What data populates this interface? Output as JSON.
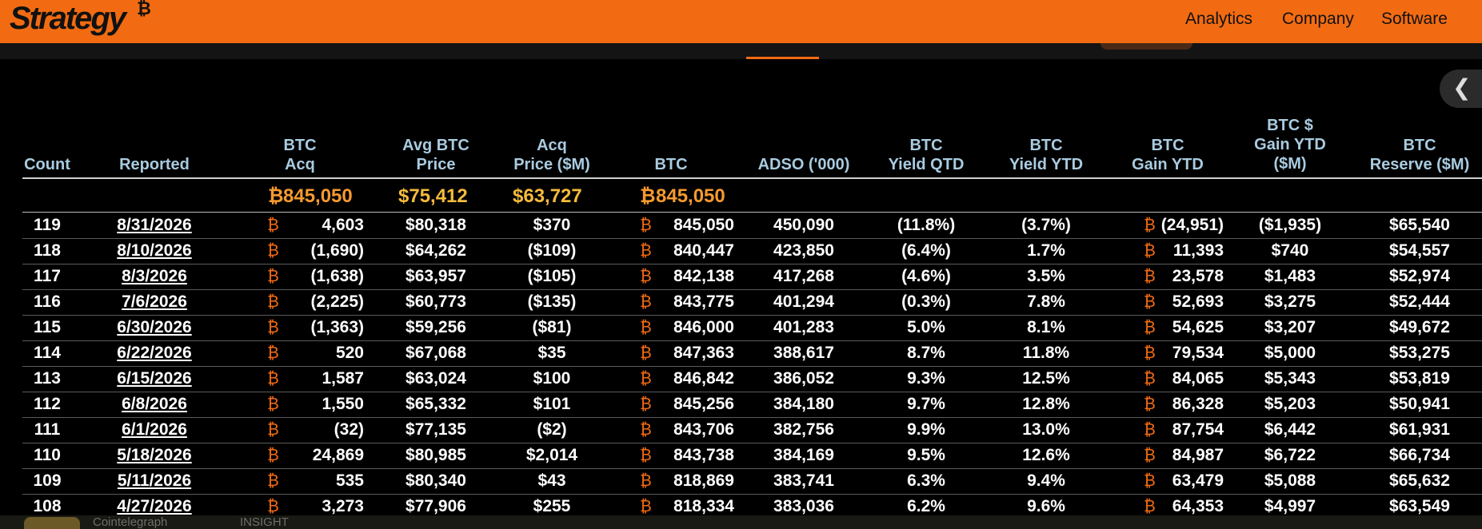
{
  "brand": {
    "logo_text": "Strategy",
    "logo_mark": "₿"
  },
  "nav": {
    "analytics": "Analytics",
    "company": "Company",
    "software": "Software"
  },
  "collapse_icon": "chevron-left-icon",
  "colors": {
    "accent": "#f26b12",
    "header_text": "#a9cbe0",
    "total_text": "#f5bb3c",
    "background": "#000000"
  },
  "table": {
    "headers": {
      "count": [
        "Count"
      ],
      "reported": [
        "Reported"
      ],
      "btc_acq": [
        "BTC",
        "Acq"
      ],
      "avg_btc_price": [
        "Avg BTC",
        "Price"
      ],
      "acq_price": [
        "Acq",
        "Price ($M)"
      ],
      "btc": [
        "BTC"
      ],
      "adso": [
        "ADSO ('000)"
      ],
      "btc_yield_qtd": [
        "BTC",
        "Yield QTD"
      ],
      "btc_yield_ytd": [
        "BTC",
        "Yield YTD"
      ],
      "btc_gain_ytd": [
        "BTC",
        "Gain YTD"
      ],
      "btc_usd_gain_ytd": [
        "BTC $",
        "Gain YTD",
        "($M)"
      ],
      "btc_reserve": [
        "BTC",
        "Reserve ($M)"
      ]
    },
    "btc_symbol": "₿",
    "totals": {
      "btc_acq": "845,050",
      "avg_btc_price": "$75,412",
      "acq_price": "$63,727",
      "btc": "845,050"
    },
    "rows": [
      {
        "count": "119",
        "reported": "8/31/2026",
        "btc_acq": "4,603",
        "avg_btc_price": "$80,318",
        "acq_price": "$370",
        "btc": "845,050",
        "adso": "450,090",
        "qtd": "(11.8%)",
        "ytd": "(3.7%)",
        "gain_ytd": "(24,951)",
        "gain_usd": "($1,935)",
        "reserve": "$65,540"
      },
      {
        "count": "118",
        "reported": "8/10/2026",
        "btc_acq": "(1,690)",
        "avg_btc_price": "$64,262",
        "acq_price": "($109)",
        "btc": "840,447",
        "adso": "423,850",
        "qtd": "(6.4%)",
        "ytd": "1.7%",
        "gain_ytd": "11,393",
        "gain_usd": "$740",
        "reserve": "$54,557"
      },
      {
        "count": "117",
        "reported": "8/3/2026",
        "btc_acq": "(1,638)",
        "avg_btc_price": "$63,957",
        "acq_price": "($105)",
        "btc": "842,138",
        "adso": "417,268",
        "qtd": "(4.6%)",
        "ytd": "3.5%",
        "gain_ytd": "23,578",
        "gain_usd": "$1,483",
        "reserve": "$52,974"
      },
      {
        "count": "116",
        "reported": "7/6/2026",
        "btc_acq": "(2,225)",
        "avg_btc_price": "$60,773",
        "acq_price": "($135)",
        "btc": "843,775",
        "adso": "401,294",
        "qtd": "(0.3%)",
        "ytd": "7.8%",
        "gain_ytd": "52,693",
        "gain_usd": "$3,275",
        "reserve": "$52,444"
      },
      {
        "count": "115",
        "reported": "6/30/2026",
        "btc_acq": "(1,363)",
        "avg_btc_price": "$59,256",
        "acq_price": "($81)",
        "btc": "846,000",
        "adso": "401,283",
        "qtd": "5.0%",
        "ytd": "8.1%",
        "gain_ytd": "54,625",
        "gain_usd": "$3,207",
        "reserve": "$49,672"
      },
      {
        "count": "114",
        "reported": "6/22/2026",
        "btc_acq": "520",
        "avg_btc_price": "$67,068",
        "acq_price": "$35",
        "btc": "847,363",
        "adso": "388,617",
        "qtd": "8.7%",
        "ytd": "11.8%",
        "gain_ytd": "79,534",
        "gain_usd": "$5,000",
        "reserve": "$53,275"
      },
      {
        "count": "113",
        "reported": "6/15/2026",
        "btc_acq": "1,587",
        "avg_btc_price": "$63,024",
        "acq_price": "$100",
        "btc": "846,842",
        "adso": "386,052",
        "qtd": "9.3%",
        "ytd": "12.5%",
        "gain_ytd": "84,065",
        "gain_usd": "$5,343",
        "reserve": "$53,819"
      },
      {
        "count": "112",
        "reported": "6/8/2026",
        "btc_acq": "1,550",
        "avg_btc_price": "$65,332",
        "acq_price": "$101",
        "btc": "845,256",
        "adso": "384,180",
        "qtd": "9.7%",
        "ytd": "12.8%",
        "gain_ytd": "86,328",
        "gain_usd": "$5,203",
        "reserve": "$50,941"
      },
      {
        "count": "111",
        "reported": "6/1/2026",
        "btc_acq": "(32)",
        "avg_btc_price": "$77,135",
        "acq_price": "($2)",
        "btc": "843,706",
        "adso": "382,756",
        "qtd": "9.9%",
        "ytd": "13.0%",
        "gain_ytd": "87,754",
        "gain_usd": "$6,442",
        "reserve": "$61,931"
      },
      {
        "count": "110",
        "reported": "5/18/2026",
        "btc_acq": "24,869",
        "avg_btc_price": "$80,985",
        "acq_price": "$2,014",
        "btc": "843,738",
        "adso": "384,169",
        "qtd": "9.5%",
        "ytd": "12.6%",
        "gain_ytd": "84,987",
        "gain_usd": "$6,722",
        "reserve": "$66,734"
      },
      {
        "count": "109",
        "reported": "5/11/2026",
        "btc_acq": "535",
        "avg_btc_price": "$80,340",
        "acq_price": "$43",
        "btc": "818,869",
        "adso": "383,741",
        "qtd": "6.3%",
        "ytd": "9.4%",
        "gain_ytd": "63,479",
        "gain_usd": "$5,088",
        "reserve": "$65,632"
      },
      {
        "count": "108",
        "reported": "4/27/2026",
        "btc_acq": "3,273",
        "avg_btc_price": "$77,906",
        "acq_price": "$255",
        "btc": "818,334",
        "adso": "383,036",
        "qtd": "6.2%",
        "ytd": "9.6%",
        "gain_ytd": "64,353",
        "gain_usd": "$4,997",
        "reserve": "$63,549"
      }
    ]
  },
  "footer_strip": {
    "item1": "Cointelegraph",
    "item2": "INSIGHT"
  }
}
